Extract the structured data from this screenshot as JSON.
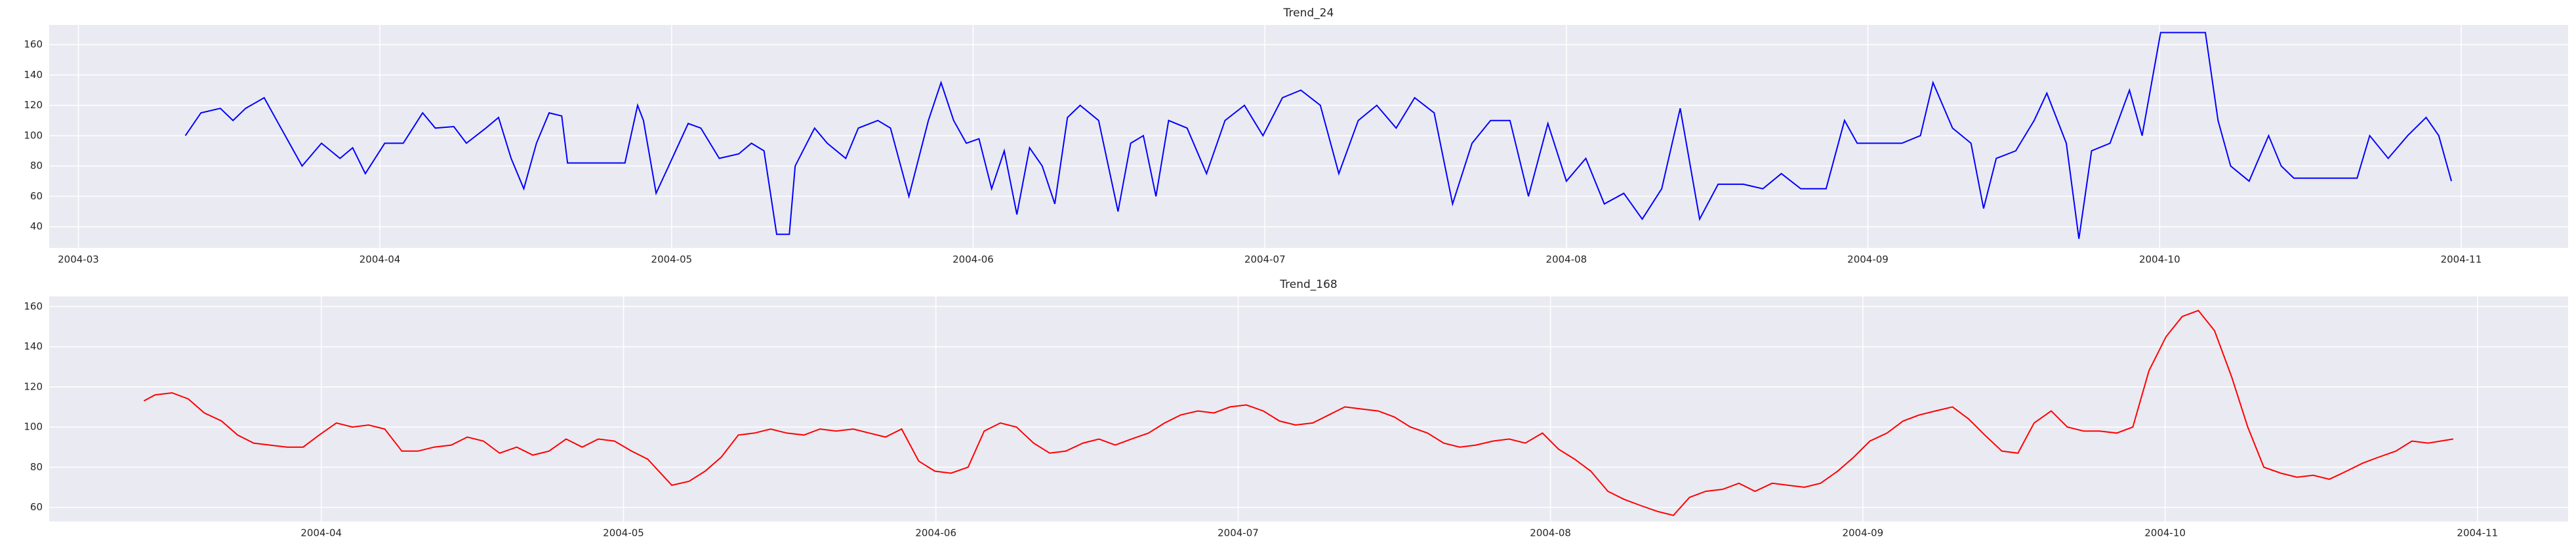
{
  "chart_data": [
    {
      "type": "line",
      "title": "Trend_24",
      "color": "#0000ff",
      "grid": true,
      "xlim": [
        -3,
        256
      ],
      "ylim": [
        26,
        173
      ],
      "xticks": [
        {
          "value": 0,
          "label": "2004-03"
        },
        {
          "value": 31,
          "label": "2004-04"
        },
        {
          "value": 61,
          "label": "2004-05"
        },
        {
          "value": 92,
          "label": "2004-06"
        },
        {
          "value": 122,
          "label": "2004-07"
        },
        {
          "value": 153,
          "label": "2004-08"
        },
        {
          "value": 184,
          "label": "2004-09"
        },
        {
          "value": 214,
          "label": "2004-10"
        },
        {
          "value": 245,
          "label": "2004-11"
        }
      ],
      "yticks": [
        40,
        60,
        80,
        100,
        120,
        140,
        160
      ],
      "x": [
        11.0,
        12.6,
        14.6,
        15.9,
        17.2,
        19.1,
        20.4,
        21.7,
        23.0,
        25.0,
        26.9,
        28.2,
        29.5,
        31.5,
        33.4,
        35.4,
        36.7,
        38.6,
        39.9,
        41.9,
        43.2,
        44.5,
        45.8,
        47.1,
        48.4,
        49.7,
        50.3,
        53.6,
        56.2,
        57.5,
        58.1,
        59.4,
        60.7,
        62.7,
        64.0,
        65.9,
        67.9,
        69.2,
        70.5,
        71.8,
        73.1,
        73.7,
        75.7,
        77.0,
        78.9,
        80.2,
        82.2,
        83.5,
        85.4,
        87.4,
        88.7,
        90.0,
        91.3,
        92.6,
        93.9,
        95.2,
        96.5,
        97.8,
        99.1,
        100.4,
        101.7,
        103.0,
        104.9,
        106.9,
        108.2,
        109.5,
        110.8,
        112.1,
        114.0,
        116.0,
        117.9,
        119.9,
        121.8,
        123.8,
        125.7,
        127.7,
        129.6,
        131.6,
        133.5,
        135.5,
        137.4,
        139.4,
        141.3,
        143.3,
        145.2,
        147.2,
        149.1,
        151.1,
        153.0,
        155.0,
        156.9,
        158.9,
        160.8,
        162.8,
        164.7,
        166.7,
        168.6,
        171.2,
        173.2,
        175.1,
        177.1,
        179.7,
        181.6,
        182.9,
        187.5,
        189.4,
        190.7,
        192.7,
        194.6,
        195.9,
        197.2,
        199.2,
        201.1,
        202.4,
        204.4,
        205.7,
        207.0,
        208.9,
        210.9,
        212.2,
        214.1,
        218.7,
        220.0,
        221.3,
        223.2,
        225.2,
        226.5,
        227.8,
        231.7,
        234.3,
        235.6,
        237.5,
        239.5,
        241.4,
        242.7,
        244.0
      ],
      "values": [
        100,
        115,
        118,
        110,
        118,
        125,
        110,
        95,
        80,
        95,
        85,
        92,
        75,
        95,
        95,
        115,
        105,
        106,
        95,
        105,
        112,
        85,
        65,
        95,
        115,
        113,
        82,
        82,
        82,
        120,
        110,
        62,
        80,
        108,
        105,
        85,
        88,
        95,
        90,
        35,
        35,
        80,
        105,
        95,
        85,
        105,
        110,
        105,
        60,
        110,
        135,
        110,
        95,
        98,
        65,
        90,
        48,
        92,
        80,
        55,
        112,
        120,
        110,
        50,
        95,
        100,
        60,
        110,
        105,
        75,
        110,
        120,
        100,
        125,
        130,
        120,
        75,
        110,
        120,
        105,
        125,
        115,
        55,
        95,
        110,
        110,
        60,
        108,
        70,
        85,
        55,
        62,
        45,
        65,
        118,
        45,
        68,
        68,
        65,
        75,
        65,
        65,
        110,
        95,
        95,
        100,
        135,
        105,
        95,
        52,
        85,
        90,
        110,
        128,
        95,
        32,
        90,
        95,
        130,
        100,
        168,
        168,
        110,
        80,
        70,
        100,
        80,
        72,
        72,
        72,
        100,
        85,
        100,
        112,
        100,
        70
      ]
    },
    {
      "type": "line",
      "title": "Trend_168",
      "color": "#ff0000",
      "grid": true,
      "xlim": [
        4,
        254
      ],
      "ylim": [
        53,
        165
      ],
      "xticks": [
        {
          "value": 31,
          "label": "2004-04"
        },
        {
          "value": 61,
          "label": "2004-05"
        },
        {
          "value": 92,
          "label": "2004-06"
        },
        {
          "value": 122,
          "label": "2004-07"
        },
        {
          "value": 153,
          "label": "2004-08"
        },
        {
          "value": 184,
          "label": "2004-09"
        },
        {
          "value": 214,
          "label": "2004-10"
        },
        {
          "value": 245,
          "label": "2004-11"
        }
      ],
      "yticks": [
        60,
        80,
        100,
        120,
        140,
        160
      ],
      "x": [
        13.4,
        14.5,
        16.2,
        17.8,
        19.4,
        21.1,
        22.7,
        24.3,
        25.9,
        27.6,
        29.2,
        30.8,
        32.5,
        34.1,
        35.7,
        37.3,
        39.0,
        40.6,
        42.2,
        43.9,
        45.5,
        47.1,
        48.7,
        50.4,
        52.0,
        53.6,
        55.3,
        56.9,
        58.5,
        60.1,
        61.8,
        63.4,
        65.8,
        67.5,
        69.1,
        70.7,
        72.4,
        74.0,
        75.6,
        77.2,
        78.9,
        80.5,
        82.1,
        83.8,
        85.4,
        87.0,
        88.6,
        90.3,
        91.9,
        93.5,
        95.2,
        96.8,
        98.4,
        100.0,
        101.7,
        103.3,
        104.9,
        106.6,
        108.2,
        109.8,
        111.4,
        113.1,
        114.7,
        116.3,
        118.0,
        119.6,
        121.2,
        122.8,
        124.5,
        126.1,
        127.7,
        129.4,
        131.0,
        132.6,
        134.2,
        135.9,
        137.5,
        139.1,
        140.8,
        142.4,
        144.0,
        145.6,
        147.3,
        148.9,
        150.5,
        152.2,
        153.8,
        155.4,
        157.0,
        158.7,
        160.3,
        161.9,
        163.6,
        165.2,
        166.8,
        168.4,
        170.1,
        171.7,
        173.3,
        175.0,
        176.6,
        178.2,
        179.8,
        181.5,
        183.1,
        184.7,
        186.4,
        188.0,
        189.6,
        191.2,
        192.9,
        194.5,
        196.1,
        197.8,
        199.4,
        201.0,
        202.7,
        204.3,
        205.9,
        207.5,
        209.2,
        210.8,
        212.4,
        214.1,
        215.7,
        217.3,
        218.9,
        220.6,
        222.2,
        223.8,
        225.5,
        227.1,
        228.7,
        230.3,
        232.0,
        233.6,
        235.2,
        236.9,
        238.5,
        240.1,
        242.6
      ],
      "values": [
        113,
        116,
        117,
        114,
        107,
        103,
        96,
        92,
        91,
        90,
        90,
        96,
        102,
        100,
        101,
        99,
        88,
        88,
        90,
        91,
        95,
        93,
        87,
        90,
        86,
        88,
        94,
        90,
        94,
        93,
        88,
        84,
        71,
        73,
        78,
        85,
        96,
        97,
        99,
        97,
        96,
        99,
        98,
        99,
        97,
        95,
        99,
        83,
        78,
        77,
        80,
        98,
        102,
        100,
        92,
        87,
        88,
        92,
        94,
        91,
        94,
        97,
        102,
        106,
        108,
        107,
        110,
        111,
        108,
        103,
        101,
        102,
        106,
        110,
        109,
        108,
        105,
        100,
        97,
        92,
        90,
        91,
        93,
        94,
        92,
        97,
        89,
        84,
        78,
        68,
        64,
        61,
        58,
        56,
        65,
        68,
        69,
        72,
        68,
        72,
        71,
        70,
        72,
        78,
        85,
        93,
        97,
        103,
        106,
        108,
        110,
        104,
        96,
        88,
        87,
        102,
        108,
        100,
        98,
        98,
        97,
        100,
        128,
        145,
        155,
        158,
        148,
        125,
        100,
        80,
        77,
        75,
        76,
        74,
        78,
        82,
        85,
        88,
        93,
        92,
        94
      ]
    }
  ]
}
